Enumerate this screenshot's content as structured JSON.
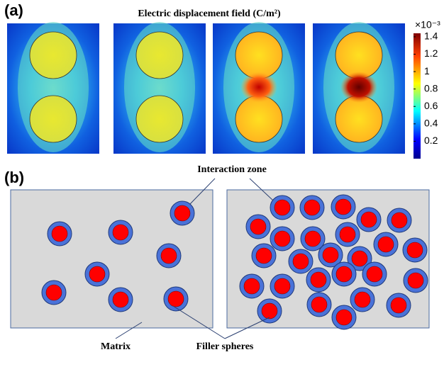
{
  "panel_a": {
    "label": "(a)",
    "title": "Electric displacement field (C/m²)",
    "colorbar": {
      "exponent_label": "×10⁻³",
      "clim": [
        0,
        1.44
      ],
      "ticks": [
        1.4,
        1.2,
        1,
        0.8,
        0.6,
        0.4,
        0.2
      ]
    }
  },
  "panel_b": {
    "label": "(b)",
    "interaction_zone": "Interaction zone",
    "matrix": "Matrix",
    "filler_spheres": "Filler spheres"
  }
}
